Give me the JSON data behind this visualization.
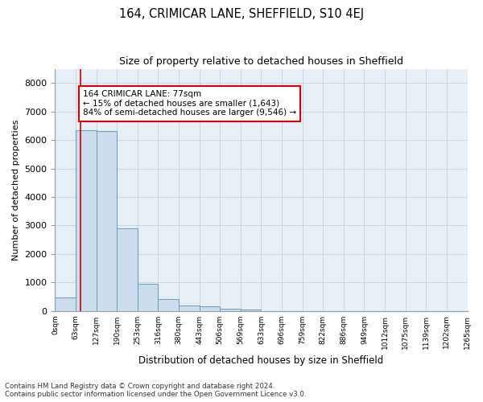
{
  "title1": "164, CRIMICAR LANE, SHEFFIELD, S10 4EJ",
  "title2": "Size of property relative to detached houses in Sheffield",
  "xlabel": "Distribution of detached houses by size in Sheffield",
  "ylabel": "Number of detached properties",
  "bin_labels": [
    "0sqm",
    "63sqm",
    "127sqm",
    "190sqm",
    "253sqm",
    "316sqm",
    "380sqm",
    "443sqm",
    "506sqm",
    "569sqm",
    "633sqm",
    "696sqm",
    "759sqm",
    "822sqm",
    "886sqm",
    "949sqm",
    "1012sqm",
    "1075sqm",
    "1139sqm",
    "1202sqm",
    "1265sqm"
  ],
  "bar_values": [
    480,
    6350,
    6300,
    2900,
    950,
    420,
    200,
    150,
    80,
    50,
    0,
    0,
    0,
    0,
    0,
    0,
    0,
    0,
    0,
    0
  ],
  "bar_color": "#ccdded",
  "bar_edge_color": "#6699bb",
  "property_line_x": 77,
  "annotation_text": "164 CRIMICAR LANE: 77sqm\n← 15% of detached houses are smaller (1,643)\n84% of semi-detached houses are larger (9,546) →",
  "annotation_box_color": "#ffffff",
  "annotation_box_edge": "#cc0000",
  "vline_color": "#cc0000",
  "ylim": [
    0,
    8500
  ],
  "yticks": [
    0,
    1000,
    2000,
    3000,
    4000,
    5000,
    6000,
    7000,
    8000
  ],
  "footnote1": "Contains HM Land Registry data © Crown copyright and database right 2024.",
  "footnote2": "Contains public sector information licensed under the Open Government Licence v3.0.",
  "bg_color": "#ffffff",
  "plot_bg_color": "#e8eef5",
  "grid_color": "#c5d0dc",
  "bin_width": 63
}
